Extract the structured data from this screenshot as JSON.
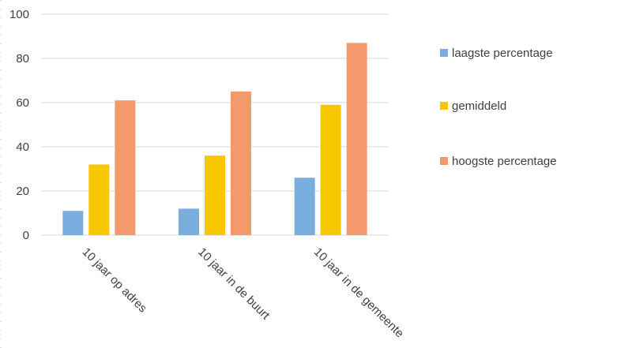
{
  "chart_data": {
    "type": "bar",
    "categories": [
      "10 jaar op adres",
      "10 jaar in de buurt",
      "10 jaar in de gemeente"
    ],
    "series": [
      {
        "name": "laagste percentage",
        "color": "#7aaedf",
        "values": [
          11,
          12,
          26
        ]
      },
      {
        "name": "gemiddeld",
        "color": "#f7c800",
        "values": [
          32,
          36,
          59
        ]
      },
      {
        "name": "hoogste percentage",
        "color": "#f4996b",
        "values": [
          61,
          65,
          87
        ]
      }
    ],
    "ylim": [
      0,
      100
    ],
    "yticks": [
      0,
      20,
      40,
      60,
      80,
      100
    ],
    "grid": true,
    "legend": "right",
    "title": "",
    "xlabel": "",
    "ylabel": ""
  }
}
